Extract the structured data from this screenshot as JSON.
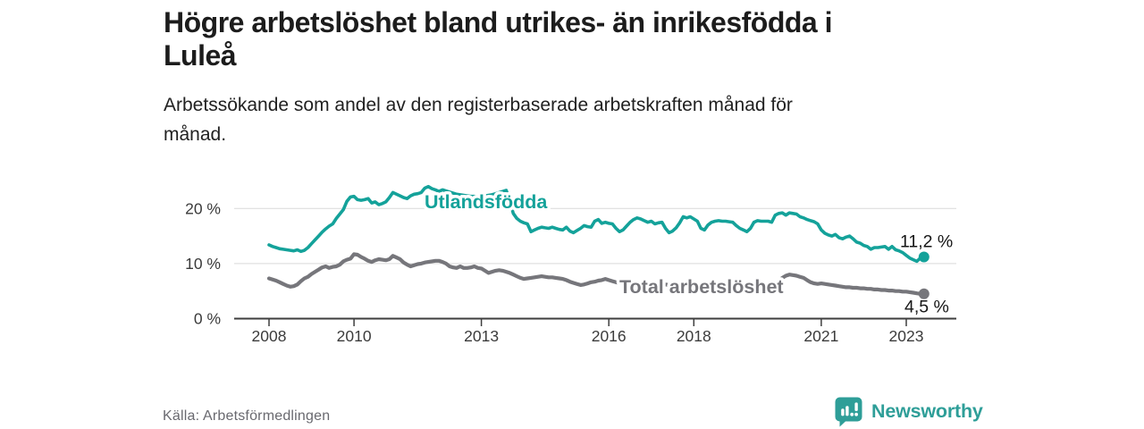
{
  "header": {
    "title": "Högre arbetslöshet bland utrikes- än inrikesfödda i\nLuleå",
    "subtitle": "Arbetssökande som andel av den registerbaserade arbetskraften månad för\nmånad."
  },
  "footer": {
    "source": "Källa: Arbetsförmedlingen",
    "brand": "Newsworthy"
  },
  "colors": {
    "accent_teal": "#14a29a",
    "series_gray": "#76767b",
    "brand_teal": "#2e9e98",
    "grid": "#d9d9d9",
    "axis": "#3e3e3e",
    "tick_text": "#3b3b3b",
    "value_text": "#161616"
  },
  "chart_data": {
    "type": "line",
    "title": "Högre arbetslöshet bland utrikes- än inrikesfödda i Luleå",
    "subtitle": "Arbetssökande som andel av den registerbaserade arbetskraften månad för månad.",
    "frequency": "monthly",
    "x_start": "2008-01",
    "x_end": "2023-06",
    "x_ticks": [
      2008,
      2010,
      2013,
      2016,
      2018,
      2021,
      2023
    ],
    "y_ticks": [
      {
        "value": 0,
        "label": "0 %"
      },
      {
        "value": 10,
        "label": "10 %"
      },
      {
        "value": 20,
        "label": "20 %"
      }
    ],
    "ylim": [
      0,
      25
    ],
    "grid": "horizontal",
    "legend_position": "inline-labels",
    "series": [
      {
        "name": "Utlandsfödda",
        "color": "#14a29a",
        "end_value": 11.2,
        "end_label": "11,2 %",
        "values": [
          13.4,
          13.1,
          12.9,
          12.7,
          12.6,
          12.5,
          12.4,
          12.3,
          12.5,
          12.2,
          12.4,
          12.9,
          13.6,
          14.3,
          15.0,
          15.7,
          16.3,
          16.8,
          17.2,
          18.2,
          19.0,
          19.8,
          21.3,
          22.1,
          22.2,
          21.6,
          21.5,
          21.6,
          21.8,
          21.0,
          21.2,
          20.7,
          20.9,
          21.2,
          22.0,
          22.9,
          22.6,
          22.3,
          22.0,
          21.8,
          22.3,
          22.6,
          22.7,
          22.9,
          23.7,
          24.0,
          23.6,
          23.4,
          23.1,
          23.4,
          23.2,
          23.0,
          22.8,
          22.6,
          22.5,
          22.4,
          22.3,
          22.2,
          22.2,
          22.1,
          22.2,
          22.3,
          22.4,
          22.5,
          22.7,
          22.9,
          23.1,
          23.3,
          21.5,
          19.1,
          18.2,
          17.7,
          17.4,
          17.2,
          15.8,
          16.1,
          16.4,
          16.6,
          16.5,
          16.4,
          16.6,
          16.4,
          16.2,
          16.1,
          16.6,
          15.9,
          15.6,
          16.0,
          16.4,
          16.9,
          16.7,
          16.6,
          17.7,
          18.0,
          17.3,
          17.5,
          17.3,
          17.2,
          16.4,
          15.8,
          16.1,
          16.8,
          17.5,
          18.0,
          18.3,
          18.1,
          17.8,
          17.5,
          17.7,
          17.2,
          17.4,
          17.5,
          16.4,
          15.6,
          15.9,
          16.5,
          17.4,
          18.5,
          18.3,
          18.5,
          18.1,
          17.7,
          16.4,
          16.1,
          17.0,
          17.5,
          17.7,
          17.8,
          17.7,
          17.7,
          17.6,
          17.5,
          16.9,
          16.4,
          16.1,
          15.8,
          16.4,
          17.5,
          17.8,
          17.7,
          17.7,
          17.7,
          17.5,
          18.8,
          19.1,
          19.2,
          18.8,
          19.2,
          19.1,
          19.0,
          18.5,
          18.3,
          18.0,
          17.8,
          17.6,
          17.2,
          16.1,
          15.5,
          15.2,
          15.0,
          15.3,
          14.7,
          14.5,
          14.8,
          15.0,
          14.5,
          13.9,
          13.7,
          13.3,
          13.1,
          12.6,
          12.9,
          12.9,
          13.0,
          13.1,
          12.6,
          13.1,
          12.5,
          12.3,
          12.0,
          11.5,
          11.0,
          10.7,
          10.4,
          11.0,
          11.2
        ]
      },
      {
        "name": "Total arbetslöshet",
        "color": "#76767b",
        "end_value": 4.5,
        "end_label": "4,5 %",
        "values": [
          7.3,
          7.1,
          6.9,
          6.6,
          6.3,
          6.0,
          5.8,
          5.9,
          6.2,
          6.8,
          7.3,
          7.6,
          8.1,
          8.5,
          8.9,
          9.3,
          9.5,
          9.2,
          9.4,
          9.5,
          9.8,
          10.4,
          10.7,
          10.9,
          11.7,
          11.6,
          11.2,
          10.9,
          10.5,
          10.3,
          10.6,
          10.8,
          10.7,
          10.6,
          10.8,
          11.4,
          11.1,
          10.8,
          10.2,
          9.8,
          9.5,
          9.7,
          9.9,
          10.0,
          10.2,
          10.3,
          10.4,
          10.5,
          10.5,
          10.3,
          10.0,
          9.5,
          9.3,
          9.2,
          9.5,
          9.2,
          9.2,
          9.3,
          9.5,
          9.2,
          9.1,
          8.7,
          8.3,
          8.5,
          8.7,
          8.8,
          8.7,
          8.5,
          8.3,
          8.0,
          7.7,
          7.4,
          7.2,
          7.3,
          7.4,
          7.5,
          7.6,
          7.7,
          7.6,
          7.5,
          7.5,
          7.4,
          7.3,
          7.2,
          7.0,
          6.7,
          6.5,
          6.3,
          6.1,
          6.2,
          6.4,
          6.6,
          6.7,
          6.9,
          7.0,
          7.2,
          7.0,
          6.8,
          6.6,
          6.5,
          6.4,
          6.3,
          6.3,
          6.4,
          6.4,
          6.5,
          6.5,
          6.4,
          6.4,
          6.3,
          6.3,
          6.2,
          6.2,
          6.1,
          6.1,
          6.2,
          6.2,
          6.3,
          6.3,
          6.2,
          6.2,
          6.1,
          6.0,
          6.0,
          5.9,
          5.9,
          5.8,
          5.9,
          5.9,
          6.0,
          6.0,
          5.9,
          5.9,
          5.8,
          5.8,
          5.7,
          5.7,
          5.8,
          5.9,
          5.9,
          6.0,
          6.1,
          6.2,
          6.4,
          6.8,
          7.4,
          7.8,
          8.0,
          7.9,
          7.8,
          7.6,
          7.4,
          7.0,
          6.6,
          6.4,
          6.3,
          6.4,
          6.3,
          6.2,
          6.1,
          6.0,
          5.9,
          5.8,
          5.7,
          5.7,
          5.6,
          5.6,
          5.5,
          5.5,
          5.4,
          5.4,
          5.3,
          5.3,
          5.2,
          5.2,
          5.1,
          5.1,
          5.0,
          5.0,
          4.9,
          4.9,
          4.8,
          4.7,
          4.6,
          4.5,
          4.5
        ]
      }
    ]
  }
}
